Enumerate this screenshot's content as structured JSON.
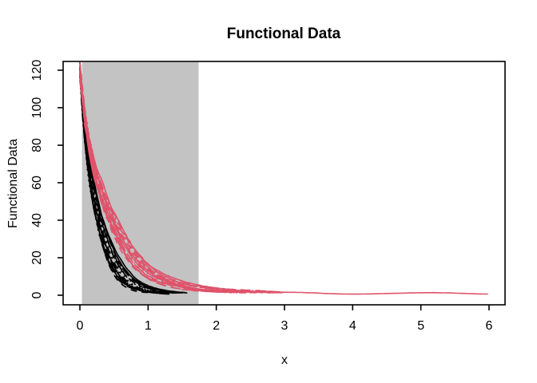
{
  "chart_data": {
    "type": "line",
    "title": "Functional Data",
    "xlabel": "x",
    "ylabel": "Functional Data",
    "xlim": [
      0,
      6
    ],
    "ylim": [
      0,
      120
    ],
    "x_ticks": [
      0,
      1,
      2,
      3,
      4,
      5,
      6
    ],
    "y_ticks": [
      0,
      20,
      40,
      60,
      80,
      100,
      120
    ],
    "grid": false,
    "legend": "none",
    "background_color": "#ffffff",
    "box_color": "#000000",
    "shaded_region": {
      "x_start": 0.03,
      "x_end": 1.74,
      "color": "#C3C3C3"
    },
    "description": "Two bundles of exponentially decaying functional-data curves starting near y=119 at x=0; black curves decay faster (flat near y=1 by x~1.2-1.6), crimson curves decay slower (flat near y=1-2 by x~2.3-3), one crimson curve extends flat to x=6. Gray band highlights x in [0.03, 1.74]. Line types cycle solid/dashed/dotted/dotdash/longdash.",
    "groups": [
      {
        "name": "fast-decay-black",
        "color": "#000000",
        "line_width": 1.6,
        "template": [
          [
            0,
            119
          ],
          [
            0.05,
            97
          ],
          [
            0.1,
            78
          ],
          [
            0.15,
            66
          ],
          [
            0.2,
            55
          ],
          [
            0.3,
            40
          ],
          [
            0.4,
            28
          ],
          [
            0.5,
            19
          ],
          [
            0.6,
            13
          ],
          [
            0.7,
            8.5
          ],
          [
            0.8,
            5.8
          ],
          [
            0.9,
            4.0
          ],
          [
            1.0,
            2.8
          ],
          [
            1.1,
            2.0
          ],
          [
            1.2,
            1.6
          ],
          [
            1.3,
            1.3
          ],
          [
            1.4,
            1.15
          ],
          [
            1.5,
            1.05
          ],
          [
            1.6,
            1.0
          ]
        ],
        "curves": [
          {
            "scale": 0.84,
            "end": 1.42,
            "lty": 1,
            "seed": 1
          },
          {
            "scale": 1.1,
            "end": 1.5,
            "lty": 2,
            "seed": 2
          },
          {
            "scale": 0.92,
            "end": 1.34,
            "lty": 3,
            "seed": 3
          },
          {
            "scale": 1.04,
            "end": 1.45,
            "lty": 4,
            "seed": 4
          },
          {
            "scale": 0.8,
            "end": 1.28,
            "lty": 5,
            "seed": 5
          },
          {
            "scale": 1.16,
            "end": 1.56,
            "lty": 1,
            "seed": 6
          },
          {
            "scale": 0.88,
            "end": 1.38,
            "lty": 2,
            "seed": 7
          },
          {
            "scale": 1.0,
            "end": 1.47,
            "lty": 3,
            "seed": 8
          },
          {
            "scale": 0.83,
            "end": 1.31,
            "lty": 4,
            "seed": 9
          },
          {
            "scale": 1.12,
            "end": 1.52,
            "lty": 5,
            "seed": 10
          },
          {
            "scale": 0.9,
            "end": 1.4,
            "lty": 1,
            "seed": 11
          },
          {
            "scale": 1.06,
            "end": 1.49,
            "lty": 2,
            "seed": 12
          },
          {
            "scale": 0.81,
            "end": 1.3,
            "lty": 3,
            "seed": 13
          },
          {
            "scale": 0.96,
            "end": 1.44,
            "lty": 4,
            "seed": 14
          },
          {
            "scale": 0.86,
            "end": 1.36,
            "lty": 5,
            "seed": 15
          },
          {
            "scale": 1.18,
            "end": 1.58,
            "lty": 1,
            "seed": 16
          },
          {
            "scale": 0.79,
            "end": 1.26,
            "lty": 2,
            "seed": 17
          },
          {
            "scale": 1.02,
            "end": 1.46,
            "lty": 3,
            "seed": 18
          },
          {
            "scale": 0.93,
            "end": 1.39,
            "lty": 4,
            "seed": 19
          },
          {
            "scale": 1.08,
            "end": 1.51,
            "lty": 5,
            "seed": 20
          }
        ]
      },
      {
        "name": "slow-decay-crimson",
        "color": "#DF536B",
        "line_width": 1.6,
        "template": [
          [
            0,
            119
          ],
          [
            0.05,
            103
          ],
          [
            0.1,
            89
          ],
          [
            0.15,
            79
          ],
          [
            0.2,
            70
          ],
          [
            0.3,
            57
          ],
          [
            0.4,
            46
          ],
          [
            0.5,
            38
          ],
          [
            0.6,
            31
          ],
          [
            0.7,
            25
          ],
          [
            0.8,
            20
          ],
          [
            0.9,
            16
          ],
          [
            1.0,
            13
          ],
          [
            1.1,
            10.5
          ],
          [
            1.2,
            8.6
          ],
          [
            1.35,
            6.6
          ],
          [
            1.5,
            5.2
          ],
          [
            1.7,
            3.9
          ],
          [
            1.9,
            3.0
          ],
          [
            2.1,
            2.4
          ],
          [
            2.4,
            1.9
          ],
          [
            2.7,
            1.5
          ],
          [
            3.0,
            1.25
          ],
          [
            4.0,
            1.0
          ],
          [
            5.0,
            0.95
          ],
          [
            6.0,
            0.95
          ]
        ],
        "curves": [
          {
            "scale": 0.88,
            "end": 2.52,
            "lty": 1,
            "seed": 101
          },
          {
            "scale": 1.06,
            "end": 2.8,
            "lty": 2,
            "seed": 102
          },
          {
            "scale": 0.94,
            "end": 2.4,
            "lty": 3,
            "seed": 103
          },
          {
            "scale": 1.1,
            "end": 2.88,
            "lty": 4,
            "seed": 104
          },
          {
            "scale": 0.85,
            "end": 2.32,
            "lty": 5,
            "seed": 105
          },
          {
            "scale": 1.0,
            "end": 6.0,
            "lty": 1,
            "seed": 106
          },
          {
            "scale": 0.91,
            "end": 2.46,
            "lty": 2,
            "seed": 107
          },
          {
            "scale": 1.08,
            "end": 2.84,
            "lty": 3,
            "seed": 108
          },
          {
            "scale": 0.87,
            "end": 2.36,
            "lty": 4,
            "seed": 109
          },
          {
            "scale": 1.14,
            "end": 2.95,
            "lty": 5,
            "seed": 110
          },
          {
            "scale": 0.96,
            "end": 2.56,
            "lty": 1,
            "seed": 111
          },
          {
            "scale": 1.04,
            "end": 2.76,
            "lty": 2,
            "seed": 112
          },
          {
            "scale": 0.89,
            "end": 2.42,
            "lty": 3,
            "seed": 113
          },
          {
            "scale": 1.02,
            "end": 2.66,
            "lty": 4,
            "seed": 114
          },
          {
            "scale": 0.93,
            "end": 2.5,
            "lty": 5,
            "seed": 115
          },
          {
            "scale": 1.15,
            "end": 3.0,
            "lty": 1,
            "seed": 116
          },
          {
            "scale": 0.84,
            "end": 2.28,
            "lty": 2,
            "seed": 117
          },
          {
            "scale": 1.05,
            "end": 2.72,
            "lty": 3,
            "seed": 118
          },
          {
            "scale": 0.97,
            "end": 2.6,
            "lty": 4,
            "seed": 119
          },
          {
            "scale": 1.11,
            "end": 2.9,
            "lty": 5,
            "seed": 120
          }
        ]
      }
    ]
  }
}
